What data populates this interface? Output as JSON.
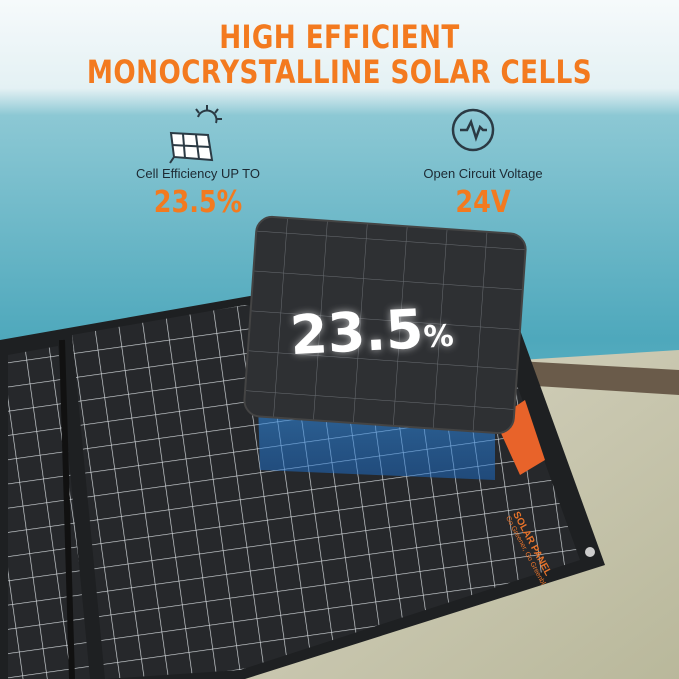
{
  "headline": {
    "line1": "HIGH EFFICIENT",
    "line2": "MONOCRYSTALLINE SOLAR CELLS"
  },
  "features": [
    {
      "icon": "solar-panel-sun-icon",
      "label": "Cell Efficiency UP TO",
      "value": "23.5%"
    },
    {
      "icon": "voltage-waveform-icon",
      "label": "Open Circuit Voltage",
      "value": "24V"
    }
  ],
  "tile": {
    "number": "23.5",
    "unit": "%"
  },
  "panel_brand": {
    "name": "SOLAR PANEL",
    "tagline": "Go Greener, Go Greenbl"
  },
  "colors": {
    "accent": "#f37a1f",
    "sea": "#4fa9bd",
    "panel": "#2a2c2f",
    "glow": "#3aa8ff"
  }
}
